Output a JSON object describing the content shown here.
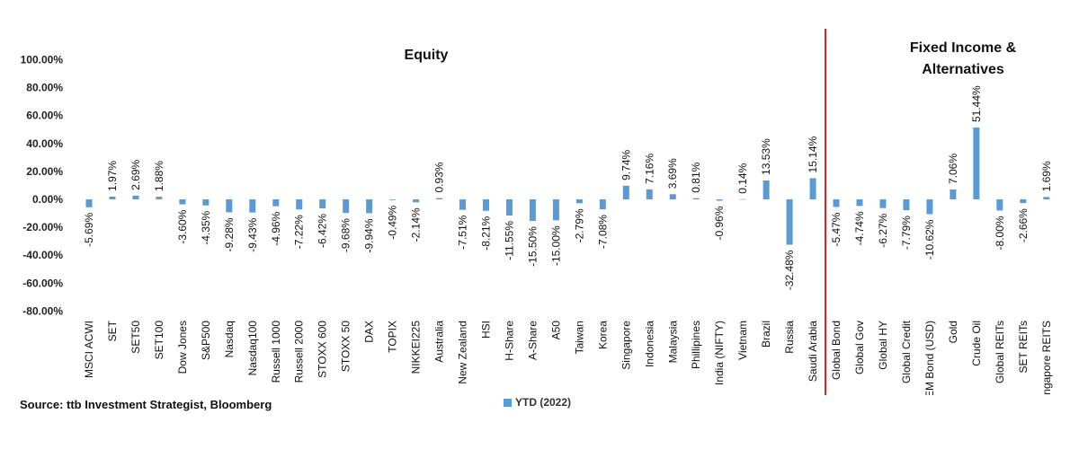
{
  "chart_data": {
    "type": "bar",
    "sections": [
      "Equity",
      "Fixed Income &",
      "Alternatives"
    ],
    "categories": [
      "MSCI ACWI",
      "SET",
      "SET50",
      "SET100",
      "Dow Jones",
      "S&P500",
      "Nasdaq",
      "Nasdaq100",
      "Russell 1000",
      "Russell 2000",
      "STOXX 600",
      "STOXX 50",
      "DAX",
      "TOPIX",
      "NIKKEI225",
      "Australia",
      "New Zealand",
      "HSI",
      "H-Share",
      "A-Share",
      "A50",
      "Taiwan",
      "Korea",
      "Singapore",
      "Indonesia",
      "Malaysia",
      "Phillipines",
      "India (NIFTY)",
      "Vietnam",
      "Brazil",
      "Russia",
      "Saudi Arabia",
      "Global Bond",
      "Global Gov",
      "Global  HY",
      "Global Credit",
      "EM Bond (USD)",
      "Gold",
      "Crude Oil",
      "Global REITs",
      "SET REITs",
      "Singapore REITS"
    ],
    "series": [
      {
        "name": "YTD (2022)",
        "color": "#5b9bd5",
        "values": [
          -5.69,
          1.97,
          2.69,
          1.88,
          -3.6,
          -4.35,
          -9.28,
          -9.43,
          -4.96,
          -7.22,
          -6.42,
          -9.68,
          -9.94,
          -0.49,
          -2.14,
          0.93,
          -7.51,
          -8.21,
          -11.55,
          -15.5,
          -15.0,
          -2.79,
          -7.08,
          9.74,
          7.16,
          3.69,
          0.81,
          -0.96,
          0.14,
          13.53,
          -32.48,
          15.14,
          -5.47,
          -4.74,
          -6.27,
          -7.79,
          -10.62,
          7.06,
          51.44,
          -8.0,
          -2.66,
          1.69
        ],
        "labels": [
          "-5.69%",
          "1.97%",
          "2.69%",
          "1.88%",
          "-3.60%",
          "-4.35%",
          "-9.28%",
          "-9.43%",
          "-4.96%",
          "-7.22%",
          "-6.42%",
          "-9.68%",
          "-9.94%",
          "-0.49%",
          "-2.14%",
          "0.93%",
          "-7.51%",
          "-8.21%",
          "-11.55%",
          "-15.50%",
          "-15.00%",
          "-2.79%",
          "-7.08%",
          "9.74%",
          "7.16%",
          "3.69%",
          "0.81%",
          "-0.96%",
          "0.14%",
          "13.53%",
          "-32.48%",
          "15.14%",
          "-5.47%",
          "-4.74%",
          "-6.27%",
          "-7.79%",
          "-10.62%",
          "7.06%",
          "51.44%",
          "-8.00%",
          "-2.66%",
          "1.69%"
        ]
      }
    ],
    "yticks": [
      "100.00%",
      "80.00%",
      "60.00%",
      "40.00%",
      "20.00%",
      "0.00%",
      "-20.00%",
      "-40.00%",
      "-60.00%",
      "-80.00%"
    ],
    "ytick_values": [
      100,
      80,
      60,
      40,
      20,
      0,
      -20,
      -40,
      -60,
      -80
    ],
    "ylim": [
      -80,
      100
    ],
    "divider_color": "#e02020",
    "legend_position": "bottom-center",
    "grid": false
  },
  "source_text": "Source: ttb Investment Strategist, Bloomberg",
  "legend_label": "YTD (2022)"
}
